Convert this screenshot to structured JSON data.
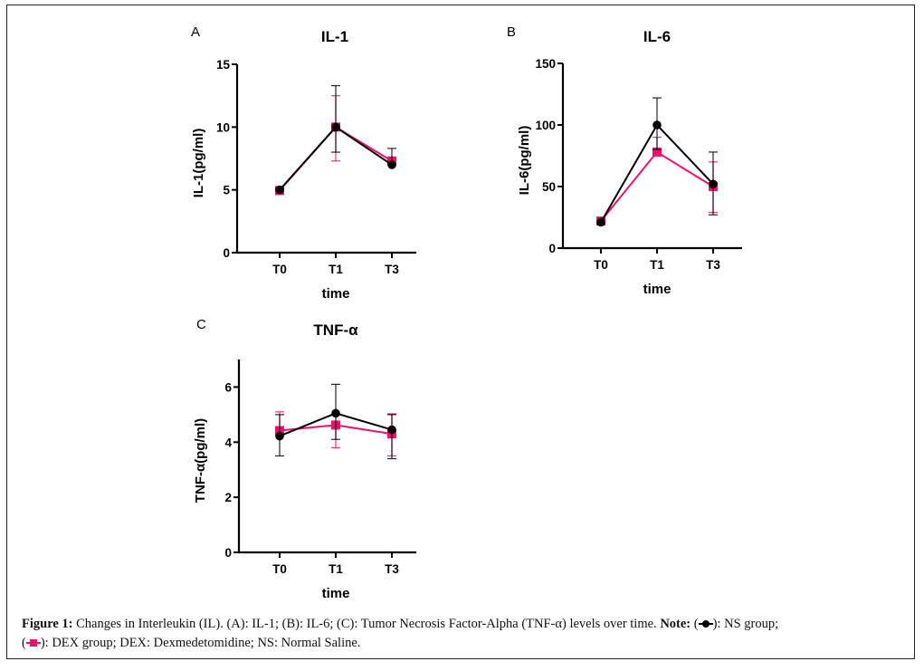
{
  "colors": {
    "ns": "#000000",
    "dex": "#e8146c"
  },
  "chart_data": [
    {
      "type": "line",
      "panel_label": "A",
      "title": "IL-1",
      "xlabel": "time",
      "ylabel": "IL-1(pg/ml)",
      "categories": [
        "T0",
        "T1",
        "T3"
      ],
      "ylim": [
        0,
        15
      ],
      "yticks": [
        0,
        5,
        10,
        15
      ],
      "grid": false,
      "series": [
        {
          "name": "NS group",
          "marker": "circle",
          "values": [
            5.0,
            10.0,
            7.0
          ],
          "err_upper": [
            5.0,
            13.3,
            8.3
          ],
          "err_lower": [
            5.0,
            8.0,
            7.0
          ]
        },
        {
          "name": "DEX group",
          "marker": "square",
          "values": [
            4.95,
            10.0,
            7.3
          ],
          "err_upper": [
            4.95,
            12.5,
            7.3
          ],
          "err_lower": [
            4.95,
            7.3,
            7.3
          ]
        }
      ]
    },
    {
      "type": "line",
      "panel_label": "B",
      "title": "IL-6",
      "xlabel": "time",
      "ylabel": "IL-6(pg/ml)",
      "categories": [
        "T0",
        "T1",
        "T3"
      ],
      "ylim": [
        0,
        150
      ],
      "yticks": [
        0,
        50,
        100,
        150
      ],
      "grid": false,
      "series": [
        {
          "name": "NS group",
          "marker": "circle",
          "values": [
            21,
            100,
            52
          ],
          "err_upper": [
            21,
            122,
            78
          ],
          "err_lower": [
            21,
            80,
            27
          ]
        },
        {
          "name": "DEX group",
          "marker": "square",
          "values": [
            22,
            78,
            50
          ],
          "err_upper": [
            22,
            90,
            70
          ],
          "err_lower": [
            22,
            78,
            29
          ]
        }
      ]
    },
    {
      "type": "line",
      "panel_label": "C",
      "title": "TNF-α",
      "xlabel": "time",
      "ylabel": "TNF-α(pg/ml)",
      "categories": [
        "T0",
        "T1",
        "T3"
      ],
      "ylim": [
        0,
        7
      ],
      "yticks": [
        0,
        2,
        4,
        6
      ],
      "grid": false,
      "series": [
        {
          "name": "NS group",
          "marker": "circle",
          "values": [
            4.22,
            5.05,
            4.45
          ],
          "err_upper": [
            5.0,
            6.1,
            5.0
          ],
          "err_lower": [
            3.5,
            4.1,
            3.4
          ]
        },
        {
          "name": "DEX group",
          "marker": "square",
          "values": [
            4.42,
            4.62,
            4.3
          ],
          "err_upper": [
            5.1,
            4.62,
            5.03
          ],
          "err_lower": [
            4.42,
            3.8,
            3.5
          ]
        }
      ]
    }
  ],
  "caption": {
    "figure_label": "Figure 1:",
    "text1": " Changes in Interleukin (IL). (A): IL-1; (B): IL-6; (C): Tumor Necrosis Factor-Alpha (TNF-α) levels over time. ",
    "note_label": "Note:",
    "ns_legend_text": "): NS group;",
    "dex_legend_text": "): DEX group; DEX: Dexmedetomidine; NS: Normal Saline."
  }
}
